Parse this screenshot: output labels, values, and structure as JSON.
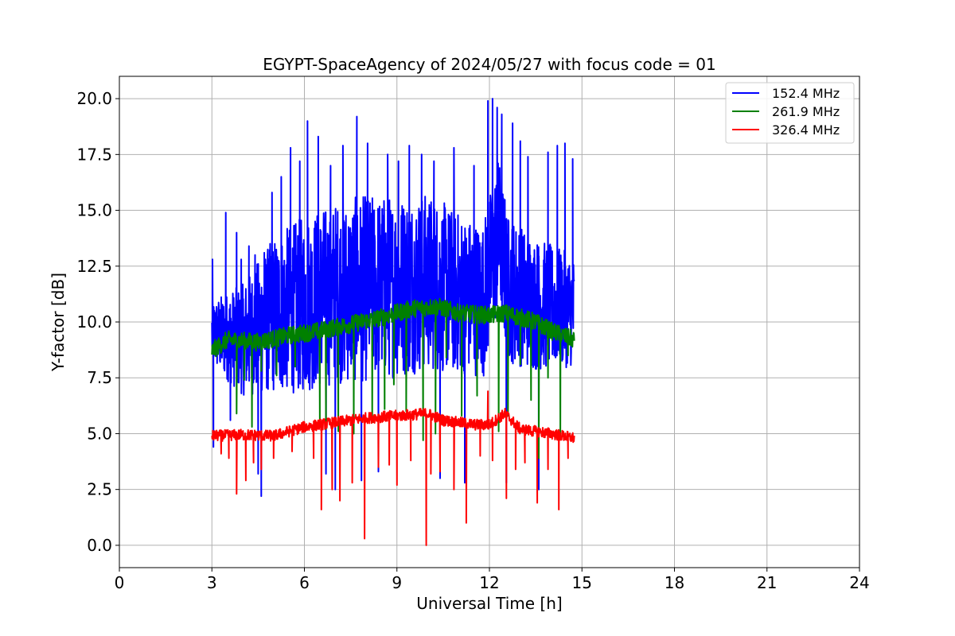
{
  "chart_data": {
    "type": "line",
    "title": "EGYPT-SpaceAgency of 2024/05/27 with focus code = 01",
    "xlabel": "Universal Time [h]",
    "ylabel": "Y-factor [dB]",
    "xlim": [
      0,
      24
    ],
    "ylim": [
      -1.0,
      21.0
    ],
    "xticks": [
      0,
      3,
      6,
      9,
      12,
      15,
      18,
      21,
      24
    ],
    "xtick_labels": [
      "0",
      "3",
      "6",
      "9",
      "12",
      "15",
      "18",
      "21",
      "24"
    ],
    "yticks": [
      0.0,
      2.5,
      5.0,
      7.5,
      10.0,
      12.5,
      15.0,
      17.5,
      20.0
    ],
    "ytick_labels": [
      "0.0",
      "2.5",
      "5.0",
      "7.5",
      "10.0",
      "12.5",
      "15.0",
      "17.5",
      "20.0"
    ],
    "grid": true,
    "legend_position": "top-right",
    "series": [
      {
        "name": "152.4 MHz",
        "color": "#0000ff",
        "x_range": [
          3.0,
          14.75
        ],
        "baseline": [
          [
            3.0,
            9.5
          ],
          [
            4.0,
            9.2
          ],
          [
            5.0,
            10.3
          ],
          [
            6.0,
            10.8
          ],
          [
            7.0,
            11.3
          ],
          [
            8.0,
            11.5
          ],
          [
            9.0,
            11.6
          ],
          [
            10.0,
            11.8
          ],
          [
            11.0,
            11.3
          ],
          [
            11.8,
            11.0
          ],
          [
            12.3,
            14.0
          ],
          [
            12.6,
            11.5
          ],
          [
            13.5,
            10.8
          ],
          [
            14.75,
            10.5
          ]
        ],
        "spread": [
          [
            3.0,
            1.5
          ],
          [
            4.0,
            2.5
          ],
          [
            5.0,
            3.5
          ],
          [
            6.0,
            4.0
          ],
          [
            8.0,
            4.2
          ],
          [
            10.0,
            4.0
          ],
          [
            11.5,
            3.5
          ],
          [
            12.2,
            3.5
          ],
          [
            13.5,
            3.0
          ],
          [
            14.75,
            2.5
          ]
        ],
        "spikes": [
          [
            3.02,
            12.8
          ],
          [
            3.05,
            4.4
          ],
          [
            3.45,
            14.9
          ],
          [
            3.6,
            5.6
          ],
          [
            3.8,
            14.0
          ],
          [
            3.95,
            12.8
          ],
          [
            4.2,
            13.4
          ],
          [
            4.4,
            13.0
          ],
          [
            4.5,
            3.2
          ],
          [
            4.6,
            2.2
          ],
          [
            4.7,
            13.1
          ],
          [
            4.95,
            15.8
          ],
          [
            5.25,
            16.5
          ],
          [
            5.55,
            17.8
          ],
          [
            5.85,
            17.2
          ],
          [
            6.1,
            19.0
          ],
          [
            6.45,
            18.3
          ],
          [
            6.7,
            3.2
          ],
          [
            6.85,
            17.0
          ],
          [
            7.0,
            2.5
          ],
          [
            7.25,
            17.9
          ],
          [
            7.7,
            19.2
          ],
          [
            7.85,
            2.9
          ],
          [
            8.05,
            18.0
          ],
          [
            8.4,
            3.3
          ],
          [
            8.7,
            17.5
          ],
          [
            9.05,
            17.2
          ],
          [
            9.4,
            17.9
          ],
          [
            9.8,
            17.5
          ],
          [
            10.2,
            17.2
          ],
          [
            10.4,
            3.0
          ],
          [
            10.85,
            17.8
          ],
          [
            11.2,
            2.8
          ],
          [
            11.5,
            17.0
          ],
          [
            11.95,
            19.9
          ],
          [
            12.1,
            20.0
          ],
          [
            12.25,
            19.6
          ],
          [
            12.4,
            19.3
          ],
          [
            12.55,
            2.8
          ],
          [
            12.75,
            18.9
          ],
          [
            13.0,
            18.1
          ],
          [
            13.25,
            17.4
          ],
          [
            13.6,
            2.5
          ],
          [
            13.9,
            17.6
          ],
          [
            14.2,
            17.9
          ],
          [
            14.45,
            18.0
          ],
          [
            14.7,
            17.3
          ]
        ]
      },
      {
        "name": "261.9 MHz",
        "color": "#008000",
        "x_range": [
          3.0,
          14.75
        ],
        "baseline": [
          [
            3.0,
            8.7
          ],
          [
            3.5,
            9.2
          ],
          [
            4.5,
            9.1
          ],
          [
            5.5,
            9.4
          ],
          [
            6.5,
            9.6
          ],
          [
            7.5,
            9.9
          ],
          [
            8.5,
            10.2
          ],
          [
            9.5,
            10.6
          ],
          [
            10.3,
            10.7
          ],
          [
            11.0,
            10.4
          ],
          [
            12.0,
            10.3
          ],
          [
            12.5,
            10.4
          ],
          [
            13.5,
            10.0
          ],
          [
            14.0,
            9.6
          ],
          [
            14.75,
            9.2
          ]
        ],
        "spread": [
          [
            3.0,
            0.4
          ],
          [
            14.75,
            0.4
          ]
        ],
        "spikes": [
          [
            3.8,
            5.9
          ],
          [
            4.05,
            7.4
          ],
          [
            4.3,
            5.3
          ],
          [
            4.6,
            7.8
          ],
          [
            5.1,
            7.6
          ],
          [
            5.7,
            8.0
          ],
          [
            6.5,
            5.3
          ],
          [
            6.7,
            5.2
          ],
          [
            7.1,
            5.1
          ],
          [
            7.6,
            5.0
          ],
          [
            8.2,
            5.5
          ],
          [
            8.6,
            6.1
          ],
          [
            8.9,
            7.2
          ],
          [
            9.3,
            6.0
          ],
          [
            9.85,
            4.7
          ],
          [
            10.25,
            5.0
          ],
          [
            10.6,
            8.4
          ],
          [
            11.1,
            5.8
          ],
          [
            11.6,
            6.7
          ],
          [
            12.3,
            5.1
          ],
          [
            12.6,
            5.8
          ],
          [
            13.0,
            8.1
          ],
          [
            13.35,
            6.5
          ],
          [
            13.6,
            3.9
          ],
          [
            13.9,
            7.5
          ],
          [
            14.3,
            4.9
          ],
          [
            14.55,
            8.5
          ]
        ]
      },
      {
        "name": "326.4 MHz",
        "color": "#ff0000",
        "x_range": [
          3.0,
          14.75
        ],
        "baseline": [
          [
            3.0,
            4.9
          ],
          [
            4.0,
            4.95
          ],
          [
            5.0,
            4.9
          ],
          [
            6.0,
            5.3
          ],
          [
            7.0,
            5.5
          ],
          [
            8.0,
            5.7
          ],
          [
            9.0,
            5.8
          ],
          [
            10.0,
            5.9
          ],
          [
            10.5,
            5.6
          ],
          [
            11.5,
            5.4
          ],
          [
            12.0,
            5.4
          ],
          [
            12.5,
            5.9
          ],
          [
            13.0,
            5.2
          ],
          [
            14.0,
            5.0
          ],
          [
            14.75,
            4.8
          ]
        ],
        "spread": [
          [
            3.0,
            0.25
          ],
          [
            14.75,
            0.25
          ]
        ],
        "spikes": [
          [
            3.3,
            4.1
          ],
          [
            3.55,
            3.9
          ],
          [
            3.8,
            2.3
          ],
          [
            4.1,
            2.9
          ],
          [
            4.35,
            3.7
          ],
          [
            4.6,
            3.4
          ],
          [
            5.0,
            3.9
          ],
          [
            5.6,
            4.2
          ],
          [
            6.3,
            3.9
          ],
          [
            6.55,
            1.6
          ],
          [
            6.9,
            2.5
          ],
          [
            7.15,
            2.0
          ],
          [
            7.55,
            2.8
          ],
          [
            7.95,
            0.3
          ],
          [
            8.4,
            3.5
          ],
          [
            8.75,
            3.6
          ],
          [
            9.0,
            2.7
          ],
          [
            9.45,
            3.8
          ],
          [
            9.95,
            0.0
          ],
          [
            10.1,
            3.2
          ],
          [
            10.4,
            3.3
          ],
          [
            10.85,
            2.5
          ],
          [
            11.25,
            1.0
          ],
          [
            11.7,
            4.0
          ],
          [
            11.95,
            6.9
          ],
          [
            12.1,
            3.8
          ],
          [
            12.55,
            2.1
          ],
          [
            12.85,
            3.4
          ],
          [
            13.15,
            3.7
          ],
          [
            13.55,
            1.9
          ],
          [
            13.9,
            3.4
          ],
          [
            14.25,
            1.6
          ],
          [
            14.55,
            3.9
          ]
        ]
      }
    ]
  }
}
